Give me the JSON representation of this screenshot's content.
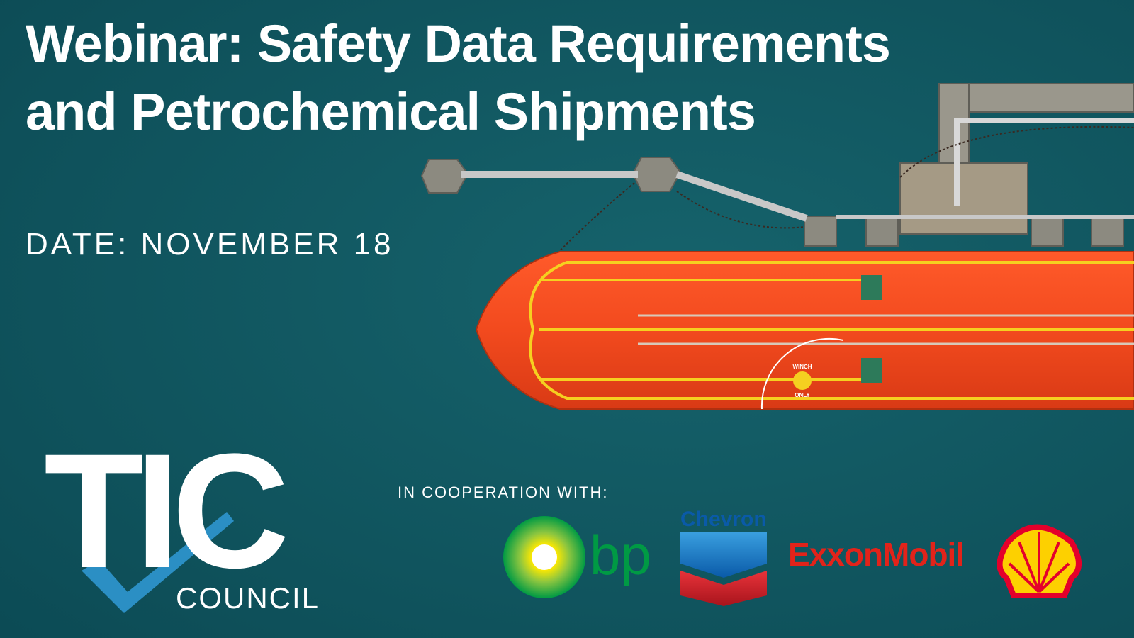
{
  "header": {
    "title_lines": [
      "Webinar: Safety Data Requirements",
      "and Petrochemical Shipments"
    ],
    "date": "DATE: NOVEMBER 18"
  },
  "logo": {
    "mark": "TIC",
    "name": "COUNCIL"
  },
  "partners": {
    "label": "IN COOPERATION WITH:",
    "logos": [
      "bp",
      "Chevron",
      "ExxonMobil"
    ]
  },
  "ship": {
    "deck_marking": [
      "WINCH",
      "ONLY"
    ]
  }
}
